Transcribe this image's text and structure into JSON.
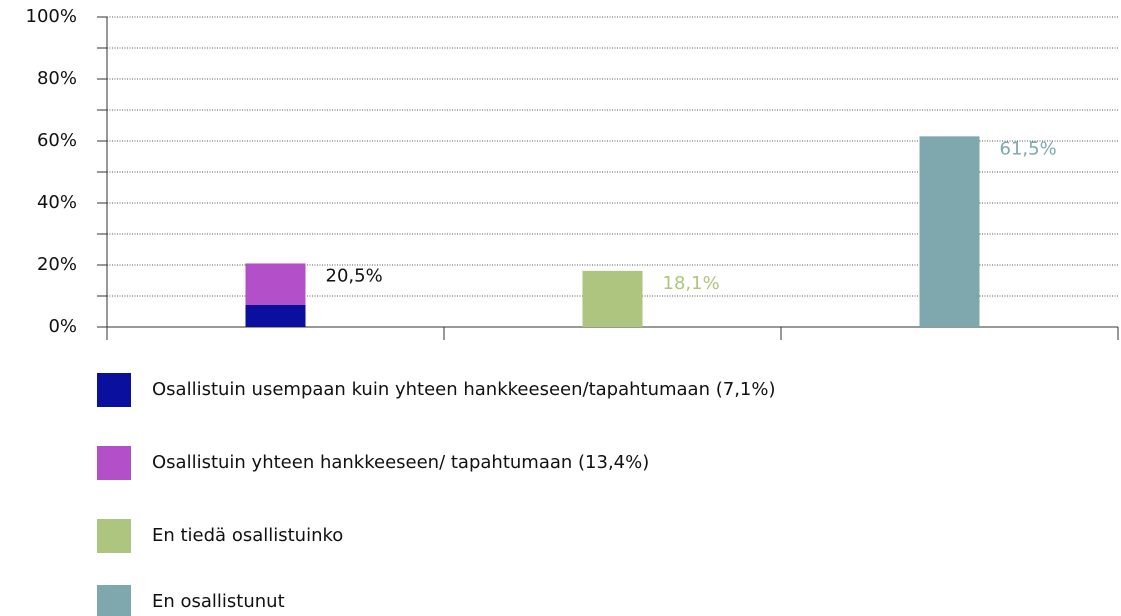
{
  "chart_data": {
    "type": "stacked_bar",
    "categories": [
      null,
      null,
      null
    ],
    "series": [
      {
        "name": "Osallistuin usempaan kuin yhteen hankkeeseen/tapahtumaan (7,1%)",
        "color": "#0a0f9e",
        "values": [
          7.1,
          null,
          null
        ]
      },
      {
        "name": "Osallistuin yhteen hankkeeseen/ tapahtumaan (13,4%)",
        "color": "#b34fc9",
        "values": [
          13.4,
          null,
          null
        ]
      },
      {
        "name": "En tiedä osallistuinko",
        "color": "#adc57e",
        "values": [
          null,
          18.1,
          null
        ]
      },
      {
        "name": "En osallistunut",
        "color": "#7fa8ae",
        "values": [
          null,
          null,
          61.5
        ]
      }
    ],
    "totals": [
      20.5,
      18.1,
      61.5
    ],
    "total_labels": [
      "20,5%",
      "18,1%",
      "61,5%"
    ],
    "total_label_colors": [
      "#111111",
      "#adc57e",
      "#7fa8ae"
    ],
    "ylim": [
      0,
      100
    ],
    "yticks": [
      {
        "value": 0,
        "label": "0%"
      },
      {
        "value": 20,
        "label": "20%"
      },
      {
        "value": 40,
        "label": "40%"
      },
      {
        "value": 60,
        "label": "60%"
      },
      {
        "value": 80,
        "label": "80%"
      },
      {
        "value": 100,
        "label": "100%"
      }
    ],
    "minor_yticks": [
      10,
      30,
      50,
      70,
      90
    ],
    "grid": true
  }
}
